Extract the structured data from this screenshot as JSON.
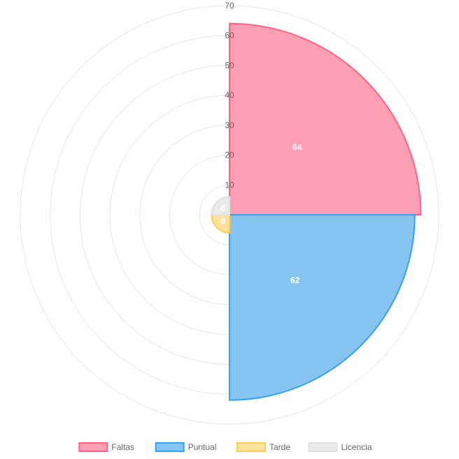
{
  "chart_data": {
    "type": "polarArea",
    "r_range": [
      0,
      70
    ],
    "r_ticks": [
      10,
      20,
      30,
      40,
      50,
      60,
      70
    ],
    "grid": true,
    "legend_position": "bottom",
    "start_angle_deg": 0,
    "series": [
      {
        "name": "Faltas",
        "value": 64,
        "fill": "#ff9fb3",
        "stroke": "#ff6384"
      },
      {
        "name": "Puntual",
        "value": 62,
        "fill": "#86c5f2",
        "stroke": "#36a2eb"
      },
      {
        "name": "Tarde",
        "value": 6,
        "fill": "#ffe29e",
        "stroke": "#ffcd56"
      },
      {
        "name": "Licencia",
        "value": 6,
        "fill": "#ebebeb",
        "stroke": "#e0e0e0"
      }
    ]
  }
}
